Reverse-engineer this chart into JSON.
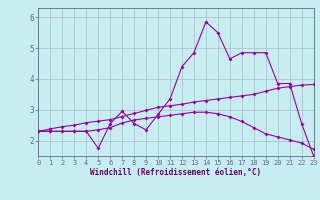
{
  "xlabel": "Windchill (Refroidissement éolien,°C)",
  "bg_color": "#c6eef0",
  "line_color": "#990099",
  "grid_color": "#aabbcc",
  "axis_color": "#666688",
  "x_values": [
    0,
    1,
    2,
    3,
    4,
    5,
    6,
    7,
    8,
    9,
    10,
    11,
    12,
    13,
    14,
    15,
    16,
    17,
    18,
    19,
    20,
    21,
    22,
    23
  ],
  "line1_y": [
    2.3,
    2.3,
    2.3,
    2.3,
    2.3,
    1.75,
    2.55,
    2.95,
    2.55,
    2.35,
    2.85,
    3.35,
    4.4,
    4.85,
    5.85,
    5.5,
    4.65,
    4.85,
    4.85,
    4.85,
    3.85,
    3.85,
    2.55,
    1.5
  ],
  "line2_y": [
    2.3,
    2.38,
    2.45,
    2.5,
    2.58,
    2.63,
    2.68,
    2.78,
    2.88,
    2.98,
    3.08,
    3.13,
    3.18,
    3.25,
    3.3,
    3.35,
    3.4,
    3.45,
    3.5,
    3.6,
    3.7,
    3.75,
    3.8,
    3.82
  ],
  "line3_y": [
    2.3,
    2.3,
    2.3,
    2.3,
    2.3,
    2.35,
    2.42,
    2.57,
    2.67,
    2.72,
    2.77,
    2.82,
    2.87,
    2.92,
    2.92,
    2.87,
    2.77,
    2.62,
    2.42,
    2.22,
    2.12,
    2.02,
    1.92,
    1.72
  ],
  "ylim": [
    1.5,
    6.3
  ],
  "xlim": [
    0,
    23
  ],
  "yticks": [
    2,
    3,
    4,
    5,
    6
  ],
  "xticks": [
    0,
    1,
    2,
    3,
    4,
    5,
    6,
    7,
    8,
    9,
    10,
    11,
    12,
    13,
    14,
    15,
    16,
    17,
    18,
    19,
    20,
    21,
    22,
    23
  ],
  "tick_fontsize": 5,
  "label_fontsize": 5.5,
  "label_color": "#660066",
  "bottom_label_color": "#660066"
}
